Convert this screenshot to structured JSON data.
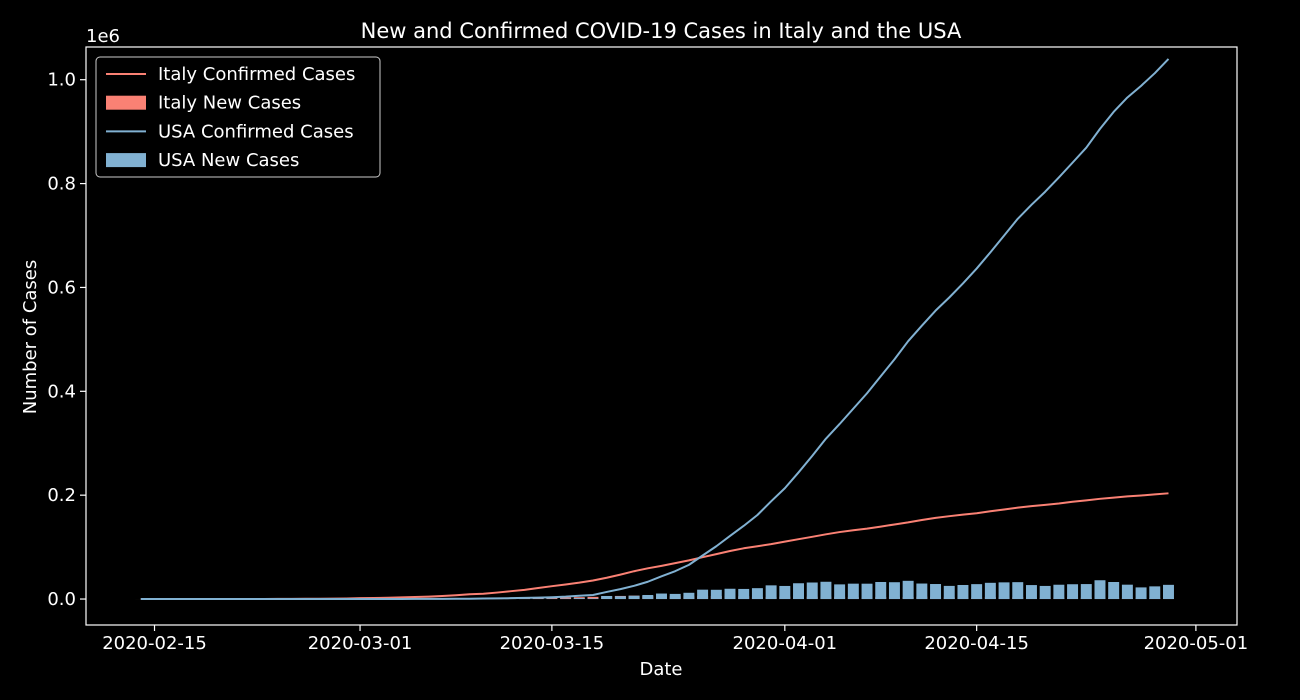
{
  "chart_data": {
    "type": "line",
    "title": "New and Confirmed COVID-19 Cases in Italy and the USA",
    "xlabel": "Date",
    "ylabel": "Number of Cases",
    "y_offset_label": "1e6",
    "xlim": [
      "2020-02-10",
      "2020-05-04"
    ],
    "ylim": [
      -50000,
      1063000
    ],
    "x_ticks": [
      "2020-02-15",
      "2020-03-01",
      "2020-03-15",
      "2020-04-01",
      "2020-04-15",
      "2020-05-01"
    ],
    "y_ticks": [
      0,
      200000,
      400000,
      600000,
      800000,
      1000000
    ],
    "y_tick_labels": [
      "0.0",
      "0.2",
      "0.4",
      "0.6",
      "0.8",
      "1.0"
    ],
    "grid": false,
    "legend_position": "upper-left",
    "x": [
      "2020-02-14",
      "2020-02-15",
      "2020-02-16",
      "2020-02-17",
      "2020-02-18",
      "2020-02-19",
      "2020-02-20",
      "2020-02-21",
      "2020-02-22",
      "2020-02-23",
      "2020-02-24",
      "2020-02-25",
      "2020-02-26",
      "2020-02-27",
      "2020-02-28",
      "2020-02-29",
      "2020-03-01",
      "2020-03-02",
      "2020-03-03",
      "2020-03-04",
      "2020-03-05",
      "2020-03-06",
      "2020-03-07",
      "2020-03-08",
      "2020-03-09",
      "2020-03-10",
      "2020-03-11",
      "2020-03-12",
      "2020-03-13",
      "2020-03-14",
      "2020-03-15",
      "2020-03-16",
      "2020-03-17",
      "2020-03-18",
      "2020-03-19",
      "2020-03-20",
      "2020-03-21",
      "2020-03-22",
      "2020-03-23",
      "2020-03-24",
      "2020-03-25",
      "2020-03-26",
      "2020-03-27",
      "2020-03-28",
      "2020-03-29",
      "2020-03-30",
      "2020-03-31",
      "2020-04-01",
      "2020-04-02",
      "2020-04-03",
      "2020-04-04",
      "2020-04-05",
      "2020-04-06",
      "2020-04-07",
      "2020-04-08",
      "2020-04-09",
      "2020-04-10",
      "2020-04-11",
      "2020-04-12",
      "2020-04-13",
      "2020-04-14",
      "2020-04-15",
      "2020-04-16",
      "2020-04-17",
      "2020-04-18",
      "2020-04-19",
      "2020-04-20",
      "2020-04-21",
      "2020-04-22",
      "2020-04-23",
      "2020-04-24",
      "2020-04-25",
      "2020-04-26",
      "2020-04-27",
      "2020-04-28",
      "2020-04-29"
    ],
    "series": [
      {
        "name": "Italy Confirmed Cases",
        "kind": "line",
        "color": "#fa8174",
        "values": [
          3,
          3,
          3,
          3,
          3,
          3,
          3,
          20,
          62,
          155,
          229,
          322,
          453,
          655,
          888,
          1128,
          1694,
          2036,
          2502,
          3089,
          3858,
          4636,
          5883,
          7375,
          9172,
          10149,
          12462,
          15113,
          17660,
          21157,
          24747,
          27980,
          31506,
          35713,
          41035,
          47021,
          53578,
          59138,
          63927,
          69176,
          74386,
          80589,
          86498,
          92472,
          97689,
          101739,
          105792,
          110574,
          115242,
          119827,
          124632,
          128948,
          132547,
          135586,
          139422,
          143626,
          147577,
          152271,
          156363,
          159516,
          162488,
          165155,
          168941,
          172434,
          175925,
          178972,
          181228,
          183957,
          187327,
          189973,
          192994,
          195351,
          197675,
          199414,
          201505,
          203591
        ]
      },
      {
        "name": "Italy New Cases",
        "kind": "bar",
        "color": "#fa8174",
        "values": [
          0,
          0,
          0,
          0,
          0,
          0,
          0,
          17,
          42,
          93,
          74,
          93,
          131,
          202,
          233,
          240,
          566,
          342,
          466,
          587,
          769,
          778,
          1247,
          1492,
          1797,
          977,
          2313,
          2651,
          2547,
          3497,
          3590,
          3233,
          3526,
          4207,
          5322,
          5986,
          6557,
          5560,
          4789,
          5249,
          5210,
          6203,
          5909,
          5974,
          5217,
          4050,
          4053,
          4782,
          4668,
          4585,
          4805,
          4316,
          3599,
          3039,
          3836,
          4204,
          3951,
          4694,
          4092,
          3153,
          2972,
          2667,
          3786,
          3493,
          3491,
          3047,
          2256,
          2729,
          3370,
          2646,
          3021,
          2357,
          2324,
          1739,
          2091,
          2086
        ]
      },
      {
        "name": "USA Confirmed Cases",
        "kind": "line",
        "color": "#81b1d2",
        "values": [
          13,
          13,
          15,
          15,
          15,
          15,
          15,
          35,
          35,
          35,
          53,
          53,
          59,
          60,
          62,
          70,
          76,
          101,
          122,
          153,
          221,
          278,
          417,
          537,
          605,
          959,
          1281,
          1663,
          2179,
          2727,
          3499,
          4632,
          6421,
          7786,
          13680,
          19101,
          25493,
          33276,
          43847,
          53740,
          65778,
          83836,
          101657,
          121465,
          140909,
          161831,
          188172,
          213372,
          243762,
          275586,
          308853,
          337072,
          366667,
          396223,
          429052,
          461437,
          496535,
          526396,
          555313,
          580619,
          607670,
          636350,
          667592,
          699706,
          732197,
          759086,
          784326,
          811865,
          840351,
          869170,
          905358,
          938154,
          965785,
          988197,
          1012582,
          1039909
        ]
      },
      {
        "name": "USA New Cases",
        "kind": "bar",
        "color": "#81b1d2",
        "values": [
          0,
          0,
          2,
          0,
          0,
          0,
          0,
          20,
          0,
          0,
          18,
          0,
          6,
          1,
          2,
          8,
          6,
          25,
          21,
          31,
          68,
          57,
          139,
          120,
          68,
          354,
          322,
          382,
          516,
          548,
          772,
          1133,
          1789,
          1365,
          5894,
          5421,
          6392,
          7783,
          10571,
          9893,
          12038,
          18058,
          17821,
          19808,
          19444,
          20922,
          26341,
          25200,
          30390,
          31824,
          33267,
          28219,
          29595,
          29556,
          32829,
          32385,
          35098,
          29861,
          28917,
          25306,
          27051,
          28680,
          31242,
          32114,
          32491,
          26889,
          25240,
          27539,
          28486,
          28819,
          36188,
          32796,
          27631,
          22412,
          24385,
          27327
        ]
      }
    ]
  }
}
